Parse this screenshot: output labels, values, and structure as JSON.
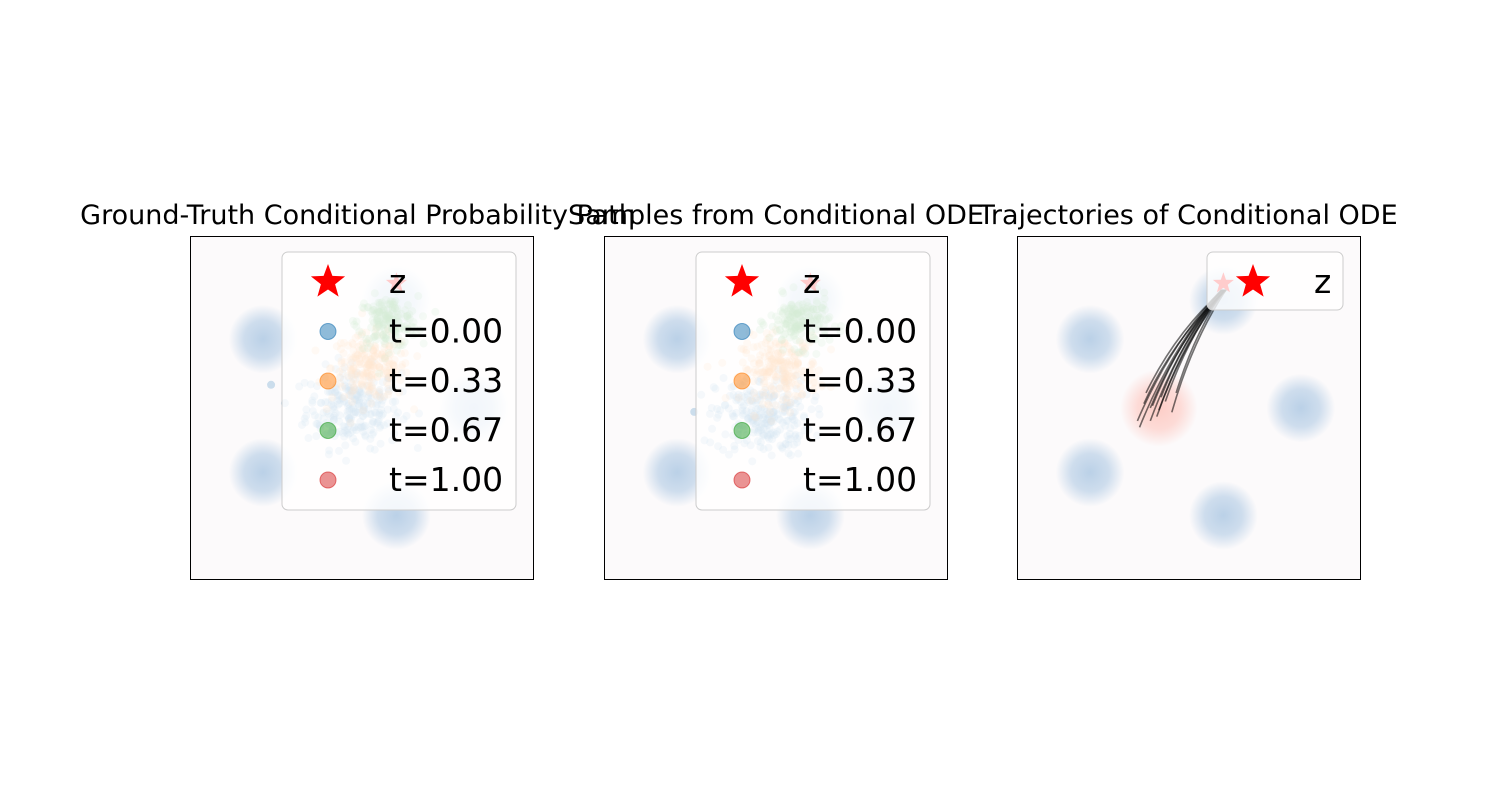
{
  "chart_data": [
    {
      "type": "scatter",
      "title": "Ground-Truth Conditional Probability Path",
      "xlabel": "",
      "ylabel": "",
      "xlim": [
        -4,
        4
      ],
      "ylim": [
        -4,
        4
      ],
      "grid": false,
      "ticks_visible": false,
      "background_density": {
        "modes": [
          [
            -2.3,
            1.6
          ],
          [
            -2.3,
            -1.5
          ],
          [
            0.8,
            2.5
          ],
          [
            0.8,
            -2.5
          ],
          [
            2.6,
            0.0
          ]
        ],
        "target_color": "#1f77b4"
      },
      "z": {
        "x": 0.8,
        "y": 2.9,
        "marker": "star",
        "color": "#ff0000"
      },
      "series": [
        {
          "name": "t=0.00",
          "color": "#1f77b4",
          "center": [
            -0.2,
            0.0
          ],
          "spread": 0.55
        },
        {
          "name": "t=0.33",
          "color": "#ff7f0e",
          "center": [
            0.2,
            0.95
          ],
          "spread": 0.45
        },
        {
          "name": "t=0.67",
          "color": "#2ca02c",
          "center": [
            0.6,
            2.0
          ],
          "spread": 0.35
        },
        {
          "name": "t=1.00",
          "color": "#d62728",
          "center": [
            0.8,
            2.9
          ],
          "spread": 0.04
        }
      ],
      "legend": {
        "placement": "upper-right",
        "entries": [
          "z",
          "t=0.00",
          "t=0.33",
          "t=0.67",
          "t=1.00"
        ]
      }
    },
    {
      "type": "scatter",
      "title": "Samples from Conditional ODE",
      "xlabel": "",
      "ylabel": "",
      "xlim": [
        -4,
        4
      ],
      "ylim": [
        -4,
        4
      ],
      "grid": false,
      "ticks_visible": false,
      "background_density": {
        "modes": [
          [
            -2.3,
            1.6
          ],
          [
            -2.3,
            -1.5
          ],
          [
            0.8,
            2.5
          ],
          [
            0.8,
            -2.5
          ],
          [
            2.6,
            0.0
          ]
        ],
        "target_color": "#1f77b4"
      },
      "z": {
        "x": 0.8,
        "y": 2.9,
        "marker": "star",
        "color": "#ff0000"
      },
      "series": [
        {
          "name": "t=0.00",
          "color": "#1f77b4",
          "center": [
            -0.3,
            -0.2
          ],
          "spread": 0.55
        },
        {
          "name": "t=0.33",
          "color": "#ff7f0e",
          "center": [
            0.1,
            0.9
          ],
          "spread": 0.45
        },
        {
          "name": "t=0.67",
          "color": "#2ca02c",
          "center": [
            0.55,
            2.0
          ],
          "spread": 0.35
        },
        {
          "name": "t=1.00",
          "color": "#d62728",
          "center": [
            0.8,
            2.9
          ],
          "spread": 0.04
        }
      ],
      "legend": {
        "placement": "upper-right",
        "entries": [
          "z",
          "t=0.00",
          "t=0.33",
          "t=0.67",
          "t=1.00"
        ]
      }
    },
    {
      "type": "line",
      "title": "Trajectories of Conditional ODE",
      "xlabel": "",
      "ylabel": "",
      "xlim": [
        -4,
        4
      ],
      "ylim": [
        -4,
        4
      ],
      "grid": false,
      "ticks_visible": false,
      "background_density": {
        "modes": [
          [
            -2.3,
            1.6
          ],
          [
            -2.3,
            -1.5
          ],
          [
            0.8,
            2.5
          ],
          [
            0.8,
            -2.5
          ],
          [
            2.6,
            0.0
          ]
        ],
        "source_mode": [
          -0.7,
          0.0
        ],
        "target_color": "#1f77b4",
        "source_color": "#ff9a8a"
      },
      "z": {
        "x": 0.8,
        "y": 2.9,
        "marker": "star",
        "color": "#ff0000"
      },
      "trajectory_starts": [
        [
          -1.2,
          -0.3
        ],
        [
          -1.15,
          -0.45
        ],
        [
          -0.9,
          -0.3
        ],
        [
          -0.85,
          0.05
        ],
        [
          -1.0,
          0.35
        ],
        [
          -0.7,
          -0.05
        ],
        [
          -0.55,
          0.15
        ],
        [
          -0.3,
          0.35
        ],
        [
          -0.65,
          0.25
        ],
        [
          -0.9,
          0.0
        ],
        [
          -0.75,
          -0.2
        ],
        [
          -0.4,
          -0.1
        ],
        [
          -1.05,
          0.1
        ]
      ],
      "trajectory_color": "#000000",
      "legend": {
        "placement": "upper-right",
        "entries": [
          "z"
        ]
      }
    }
  ]
}
